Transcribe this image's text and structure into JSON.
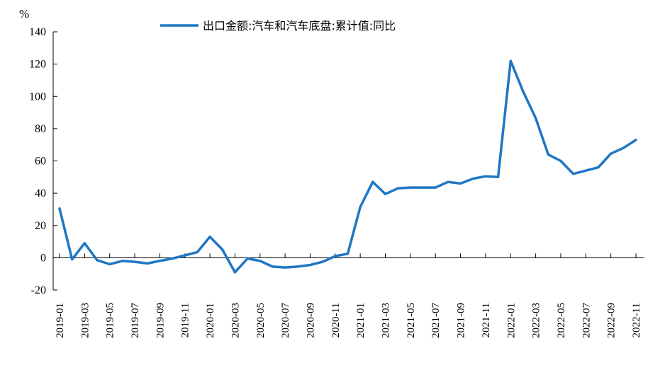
{
  "chart_data": {
    "type": "line",
    "title": "",
    "ylabel": "%",
    "xlabel": "",
    "ylim": [
      -20,
      140
    ],
    "yticks": [
      -20,
      0,
      20,
      40,
      60,
      80,
      100,
      120,
      140
    ],
    "x": [
      "2019-01",
      "2019-02",
      "2019-03",
      "2019-04",
      "2019-05",
      "2019-06",
      "2019-07",
      "2019-08",
      "2019-09",
      "2019-10",
      "2019-11",
      "2019-12",
      "2020-01",
      "2020-02",
      "2020-03",
      "2020-04",
      "2020-05",
      "2020-06",
      "2020-07",
      "2020-08",
      "2020-09",
      "2020-10",
      "2020-11",
      "2020-12",
      "2021-01",
      "2021-02",
      "2021-03",
      "2021-04",
      "2021-05",
      "2021-06",
      "2021-07",
      "2021-08",
      "2021-09",
      "2021-10",
      "2021-11",
      "2021-12",
      "2022-01",
      "2022-02",
      "2022-03",
      "2022-04",
      "2022-05",
      "2022-06",
      "2022-07",
      "2022-08",
      "2022-09",
      "2022-10",
      "2022-11"
    ],
    "xtick_labels": [
      "2019-01",
      "2019-03",
      "2019-05",
      "2019-07",
      "2019-09",
      "2019-11",
      "2020-01",
      "2020-03",
      "2020-05",
      "2020-07",
      "2020-09",
      "2020-11",
      "2021-01",
      "2021-03",
      "2021-05",
      "2021-07",
      "2021-09",
      "2021-11",
      "2022-01",
      "2022-03",
      "2022-05",
      "2022-07",
      "2022-09",
      "2022-11"
    ],
    "series": [
      {
        "name": "出口金额:汽车和汽车底盘:累计值:同比",
        "color": "#1f77c4",
        "values": [
          30.5,
          -1,
          9,
          -1.5,
          -4,
          -2,
          -2.5,
          -3.5,
          -2,
          -0.5,
          1.5,
          3.5,
          13,
          5,
          -9,
          -0.5,
          -2,
          -5.5,
          -6,
          -5.5,
          -4.5,
          -2.5,
          1,
          2.5,
          31.5,
          47,
          39.5,
          43,
          43.5,
          43.5,
          43.5,
          47,
          46,
          49,
          50.5,
          50,
          122,
          103,
          86.5,
          64,
          60,
          52,
          54,
          56,
          64.5,
          68,
          73
        ]
      }
    ]
  }
}
